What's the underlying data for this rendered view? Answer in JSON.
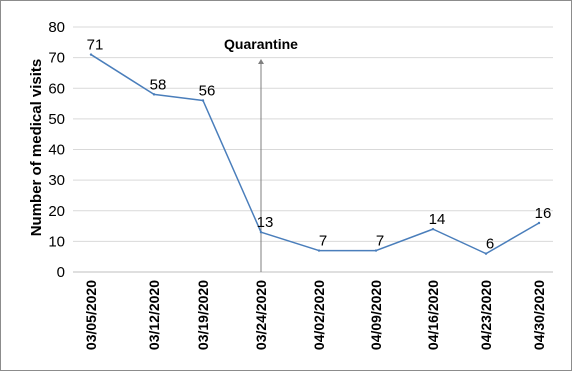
{
  "chart_data": {
    "type": "line",
    "title": "",
    "xlabel": "",
    "ylabel": "Number of medical visits",
    "ylim": [
      0,
      80
    ],
    "yticks": [
      0,
      10,
      20,
      30,
      40,
      50,
      60,
      70,
      80
    ],
    "grid": true,
    "legend": "none",
    "categories": [
      "03/05/2020",
      "03/12/2020",
      "03/19/2020",
      "03/24/2020",
      "04/02/2020",
      "04/09/2020",
      "04/16/2020",
      "04/23/2020",
      "04/30/2020"
    ],
    "series": [
      {
        "values": [
          71,
          58,
          56,
          13,
          7,
          7,
          14,
          6,
          16
        ],
        "color": "#4a7ebb"
      }
    ],
    "annotations": [
      {
        "text": "Quarantine",
        "category": "03/24/2020",
        "type": "vertical-line-arrow",
        "color": "#7f7f7f"
      }
    ],
    "gridline_color": "#d9d9d9",
    "axis_color": "#bfbfbf"
  }
}
